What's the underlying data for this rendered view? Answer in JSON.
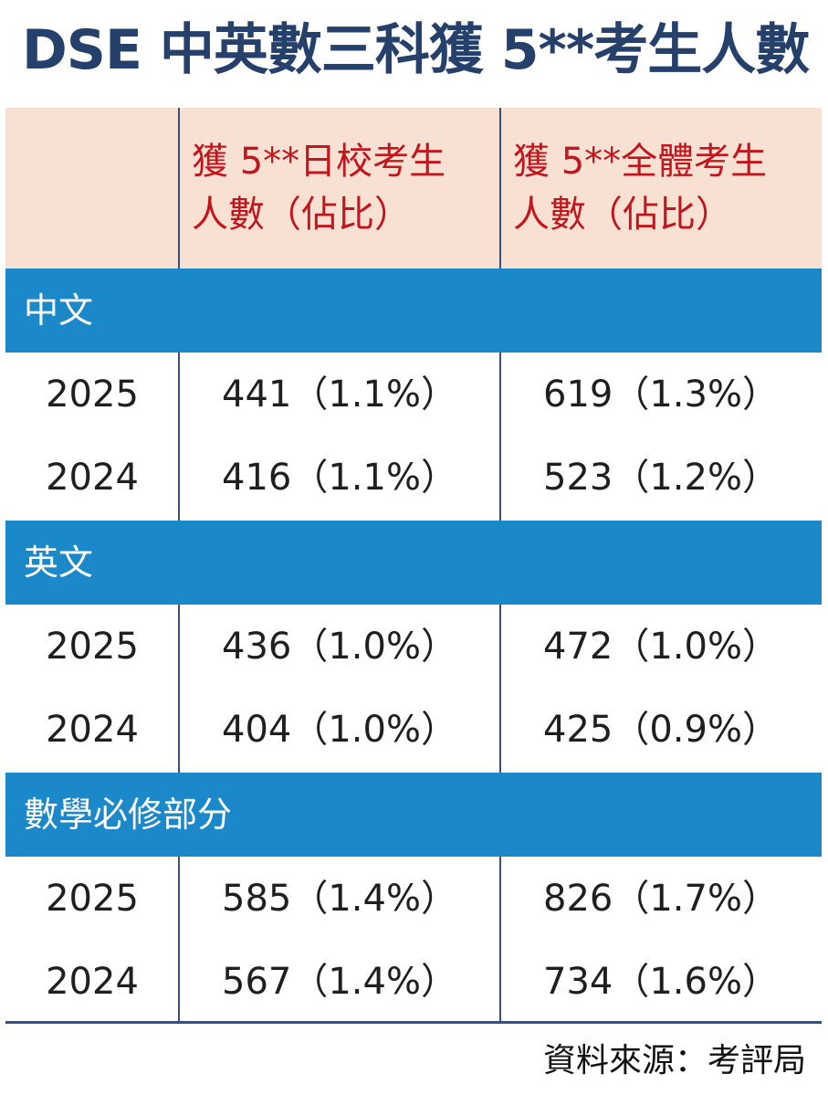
{
  "title": "DSE 中英數三科獲 5**考生人數",
  "columns": {
    "school": "獲 5**日校考生\n人數（佔比）",
    "school_line1": "獲 5**日校考生",
    "school_line2": "人數（佔比）",
    "all_line1": "獲 5**全體考生",
    "all_line2": "人數（佔比）"
  },
  "sections": [
    {
      "name": "中文",
      "rows": [
        {
          "year": "2025",
          "day": "441（1.1%）",
          "all": "619（1.3%）"
        },
        {
          "year": "2024",
          "day": "416（1.1%）",
          "all": "523（1.2%）"
        }
      ]
    },
    {
      "name": "英文",
      "rows": [
        {
          "year": "2025",
          "day": "436（1.0%）",
          "all": "472（1.0%）"
        },
        {
          "year": "2024",
          "day": "404（1.0%）",
          "all": "425（0.9%）"
        }
      ]
    },
    {
      "name": "數學必修部分",
      "rows": [
        {
          "year": "2025",
          "day": "585（1.4%）",
          "all": "826（1.7%）"
        },
        {
          "year": "2024",
          "day": "567（1.4%）",
          "all": "734（1.6%）"
        }
      ]
    }
  ],
  "source": "資料來源：考評局",
  "colors": {
    "title": "#25406b",
    "header_bg": "#f8e0d3",
    "header_text": "#c3161c",
    "band": "#1b88c9"
  }
}
